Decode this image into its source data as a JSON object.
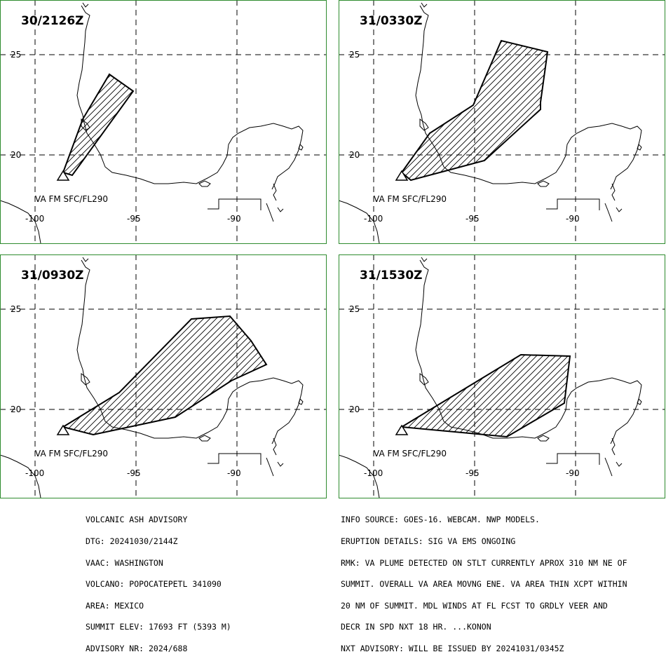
{
  "panels": [
    {
      "id": "p1",
      "time": "30/2126Z",
      "level": "VA FM SFC/FL290"
    },
    {
      "id": "p2",
      "time": "31/0330Z",
      "level": "VA FM SFC/FL290"
    },
    {
      "id": "p3",
      "time": "31/0930Z",
      "level": "VA FM SFC/FL290"
    },
    {
      "id": "p4",
      "time": "31/1530Z",
      "level": "VA FM SFC/FL290"
    }
  ],
  "axes": {
    "lat_ticks": [
      "25",
      "20"
    ],
    "lon_ticks": [
      "-100",
      "-95",
      "-90"
    ]
  },
  "colors": {
    "panel_border": "#2e8b2e",
    "coast": "#000000",
    "grid": "#000000",
    "plume": "#000000"
  },
  "advisory_left": [
    "VOLCANIC ASH ADVISORY",
    "DTG: 20241030/2144Z",
    "VAAC: WASHINGTON",
    "VOLCANO: POPOCATEPETL 341090",
    "AREA: MEXICO",
    "SUMMIT ELEV: 17693 FT (5393 M)",
    "ADVISORY NR: 2024/688"
  ],
  "advisory_right": [
    "INFO SOURCE: GOES-16. WEBCAM. NWP MODELS.",
    "ERUPTION DETAILS: SIG VA EMS ONGOING",
    "RMK: VA PLUME DETECTED ON STLT CURRENTLY APROX 310 NM NE OF",
    "SUMMIT. OVERALL VA AREA MOVNG ENE. VA AREA THIN XCPT WITHIN",
    "20 NM OF SUMMIT. MDL WINDS AT FL FCST TO GRDLY VEER AND",
    "DECR IN SPD NXT 18 HR. ...KONON",
    "NXT ADVISORY: WILL BE ISSUED BY 20241031/0345Z"
  ]
}
